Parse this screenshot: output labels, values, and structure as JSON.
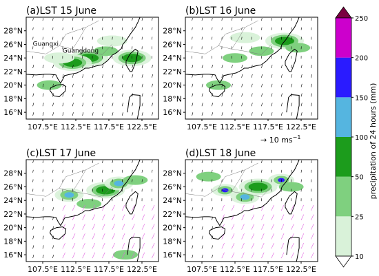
{
  "colors": {
    "ocean": "#ffffff",
    "coast": "#000000",
    "precip": [
      "#ffffff",
      "#d9f2d9",
      "#7fd07f",
      "#1c9c1c",
      "#55b5e0",
      "#2a1bff",
      "#cc00cc",
      "#7a0040"
    ],
    "wind_north": "#000000",
    "wind_south": "#e060e0"
  },
  "reference_vector": {
    "label": "→ 10 ms",
    "unit_exp": "−1"
  },
  "colorbar": {
    "label": "precipitation of 24 hours (mm)",
    "ticks": [
      "10",
      "25",
      "50",
      "100",
      "150",
      "200",
      "250"
    ]
  },
  "chart_data": [
    {
      "type": "heatmap",
      "title": "(a)LST 15 June",
      "x_ticks": [
        "107.5°E",
        "112.5°E",
        "117.5°E",
        "122.5°E"
      ],
      "y_ticks": [
        "28°N",
        "26°N",
        "24°N",
        "22°N",
        "20°N",
        "18°N",
        "16°N"
      ],
      "xlim": [
        105,
        125
      ],
      "ylim": [
        15,
        30
      ],
      "annotations": [
        "Guangxi",
        "Guangdong"
      ],
      "precip_cells": [
        {
          "lon": 114.5,
          "lat": 24.0,
          "level": 3
        },
        {
          "lon": 112.0,
          "lat": 23.3,
          "level": 3
        },
        {
          "lon": 117.0,
          "lat": 25.0,
          "level": 2
        },
        {
          "lon": 108.5,
          "lat": 20.0,
          "level": 2
        },
        {
          "lon": 121.0,
          "lat": 24.0,
          "level": 3
        },
        {
          "lon": 110.0,
          "lat": 24.0,
          "level": 1
        },
        {
          "lon": 118.0,
          "lat": 26.5,
          "level": 1
        }
      ]
    },
    {
      "type": "heatmap",
      "title": "(b)LST 16 June",
      "x_ticks": [
        "107.5°E",
        "112.5°E",
        "117.5°E",
        "122.5°E"
      ],
      "y_ticks": [
        "28°N",
        "26°N",
        "24°N",
        "22°N",
        "20°N",
        "18°N",
        "16°N"
      ],
      "xlim": [
        105,
        125
      ],
      "ylim": [
        15,
        30
      ],
      "precip_cells": [
        {
          "lon": 112.5,
          "lat": 24.0,
          "level": 2
        },
        {
          "lon": 116.5,
          "lat": 25.0,
          "level": 2
        },
        {
          "lon": 120.0,
          "lat": 26.5,
          "level": 3
        },
        {
          "lon": 110.0,
          "lat": 20.0,
          "level": 2
        },
        {
          "lon": 122.0,
          "lat": 25.5,
          "level": 2
        },
        {
          "lon": 114.0,
          "lat": 27.0,
          "level": 1
        }
      ]
    },
    {
      "type": "heatmap",
      "title": "(c)LST 17 June",
      "x_ticks": [
        "107.5°E",
        "112.5°E",
        "117.5°E",
        "122.5°E"
      ],
      "y_ticks": [
        "28°N",
        "26°N",
        "24°N",
        "22°N",
        "20°N",
        "18°N",
        "16°N"
      ],
      "xlim": [
        105,
        125
      ],
      "ylim": [
        15,
        30
      ],
      "precip_cells": [
        {
          "lon": 111.5,
          "lat": 24.8,
          "level": 6
        },
        {
          "lon": 111.5,
          "lat": 24.8,
          "level": 4
        },
        {
          "lon": 117.0,
          "lat": 25.5,
          "level": 3
        },
        {
          "lon": 119.0,
          "lat": 26.5,
          "level": 4
        },
        {
          "lon": 114.5,
          "lat": 23.5,
          "level": 2
        },
        {
          "lon": 121.5,
          "lat": 27.0,
          "level": 2
        },
        {
          "lon": 120.0,
          "lat": 16.0,
          "level": 2
        }
      ]
    },
    {
      "type": "heatmap",
      "title": "(d)LST 18 June",
      "x_ticks": [
        "107.5°E",
        "112.5°E",
        "117.5°E",
        "122.5°E"
      ],
      "y_ticks": [
        "28°N",
        "26°N",
        "24°N",
        "22°N",
        "20°N",
        "18°N",
        "16°N"
      ],
      "xlim": [
        105,
        125
      ],
      "ylim": [
        15,
        30
      ],
      "precip_cells": [
        {
          "lon": 114.0,
          "lat": 24.5,
          "level": 6
        },
        {
          "lon": 111.0,
          "lat": 25.5,
          "level": 5
        },
        {
          "lon": 119.5,
          "lat": 27.0,
          "level": 5
        },
        {
          "lon": 114.0,
          "lat": 24.5,
          "level": 4
        },
        {
          "lon": 116.0,
          "lat": 26.0,
          "level": 3
        },
        {
          "lon": 121.0,
          "lat": 26.0,
          "level": 2
        },
        {
          "lon": 108.5,
          "lat": 27.5,
          "level": 2
        }
      ]
    }
  ]
}
